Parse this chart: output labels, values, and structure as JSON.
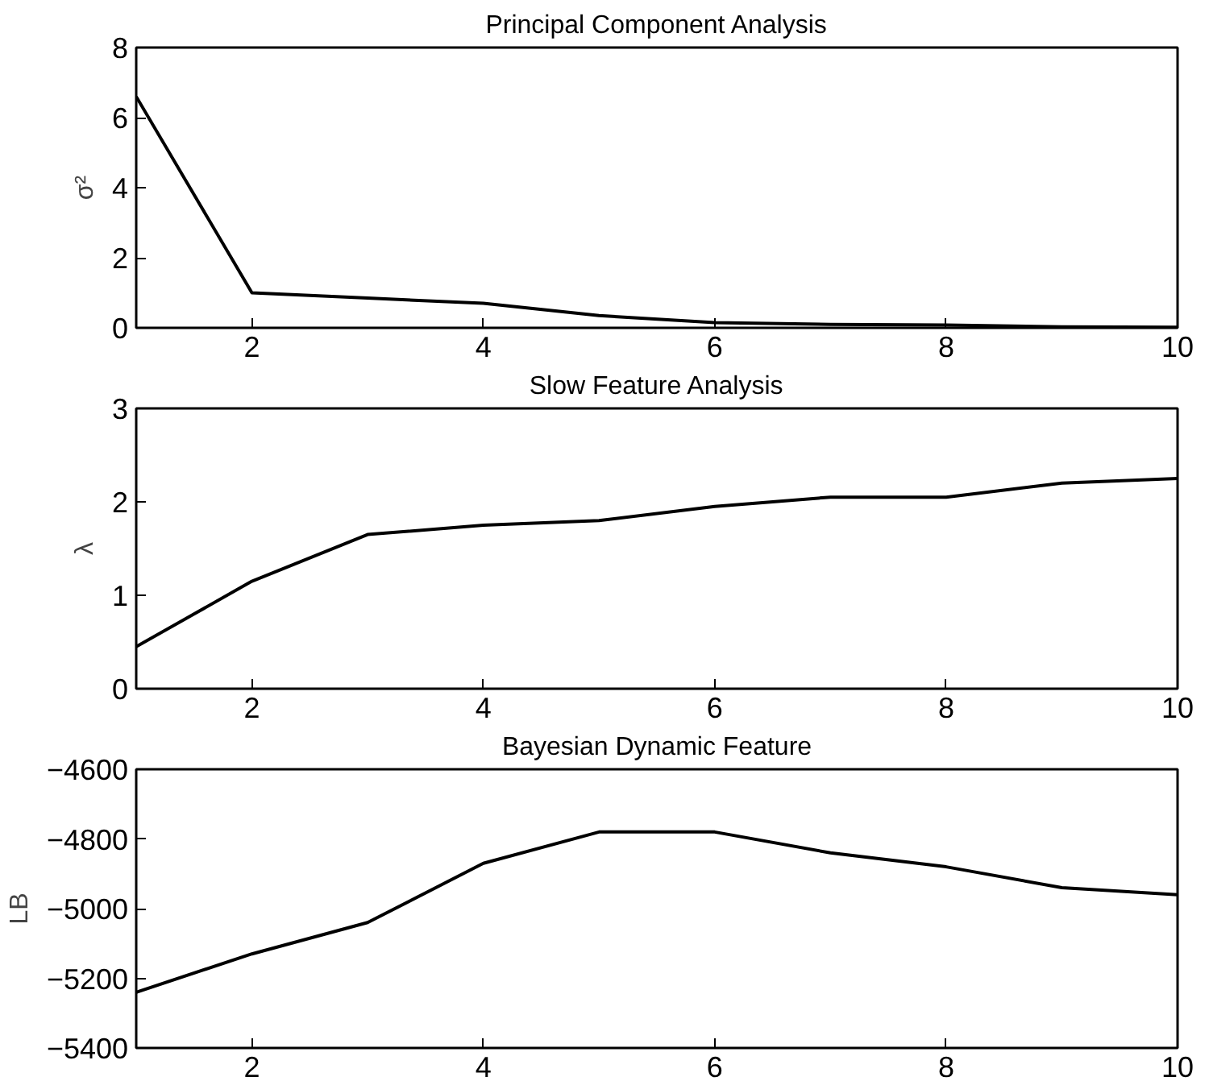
{
  "chart_data": [
    {
      "type": "line",
      "title": "Principal Component Analysis",
      "ylabel": "σ²",
      "x": [
        1,
        2,
        3,
        4,
        5,
        6,
        7,
        8,
        9,
        10
      ],
      "series": [
        {
          "color": "#000000",
          "values": [
            6.6,
            1.0,
            0.85,
            0.7,
            0.35,
            0.15,
            0.1,
            0.08,
            0.03,
            0.02
          ]
        }
      ],
      "xlim": [
        1,
        10
      ],
      "xticks": [
        2,
        4,
        6,
        8,
        10
      ],
      "ylim": [
        0,
        8
      ],
      "yticks": [
        0,
        2,
        4,
        6,
        8
      ]
    },
    {
      "type": "line",
      "title": "Slow Feature Analysis",
      "ylabel": "λ",
      "x": [
        1,
        2,
        3,
        4,
        5,
        6,
        7,
        8,
        9,
        10
      ],
      "series": [
        {
          "color": "#000000",
          "values": [
            0.45,
            1.15,
            1.65,
            1.75,
            1.8,
            1.95,
            2.05,
            2.05,
            2.2,
            2.25
          ]
        }
      ],
      "xlim": [
        1,
        10
      ],
      "xticks": [
        2,
        4,
        6,
        8,
        10
      ],
      "ylim": [
        0,
        3
      ],
      "yticks": [
        0,
        1,
        2,
        3
      ]
    },
    {
      "type": "line",
      "title": "Bayesian Dynamic Feature",
      "ylabel": "LB",
      "x": [
        1,
        2,
        3,
        4,
        5,
        6,
        7,
        8,
        9,
        10
      ],
      "series": [
        {
          "color": "#000000",
          "values": [
            -5240,
            -5130,
            -5040,
            -4870,
            -4780,
            -4780,
            -4840,
            -4880,
            -4940,
            -4960
          ]
        }
      ],
      "xlim": [
        1,
        10
      ],
      "xticks": [
        2,
        4,
        6,
        8,
        10
      ],
      "ylim": [
        -5400,
        -4600
      ],
      "yticks": [
        -5400,
        -5200,
        -5000,
        -4800,
        -4600
      ]
    }
  ]
}
